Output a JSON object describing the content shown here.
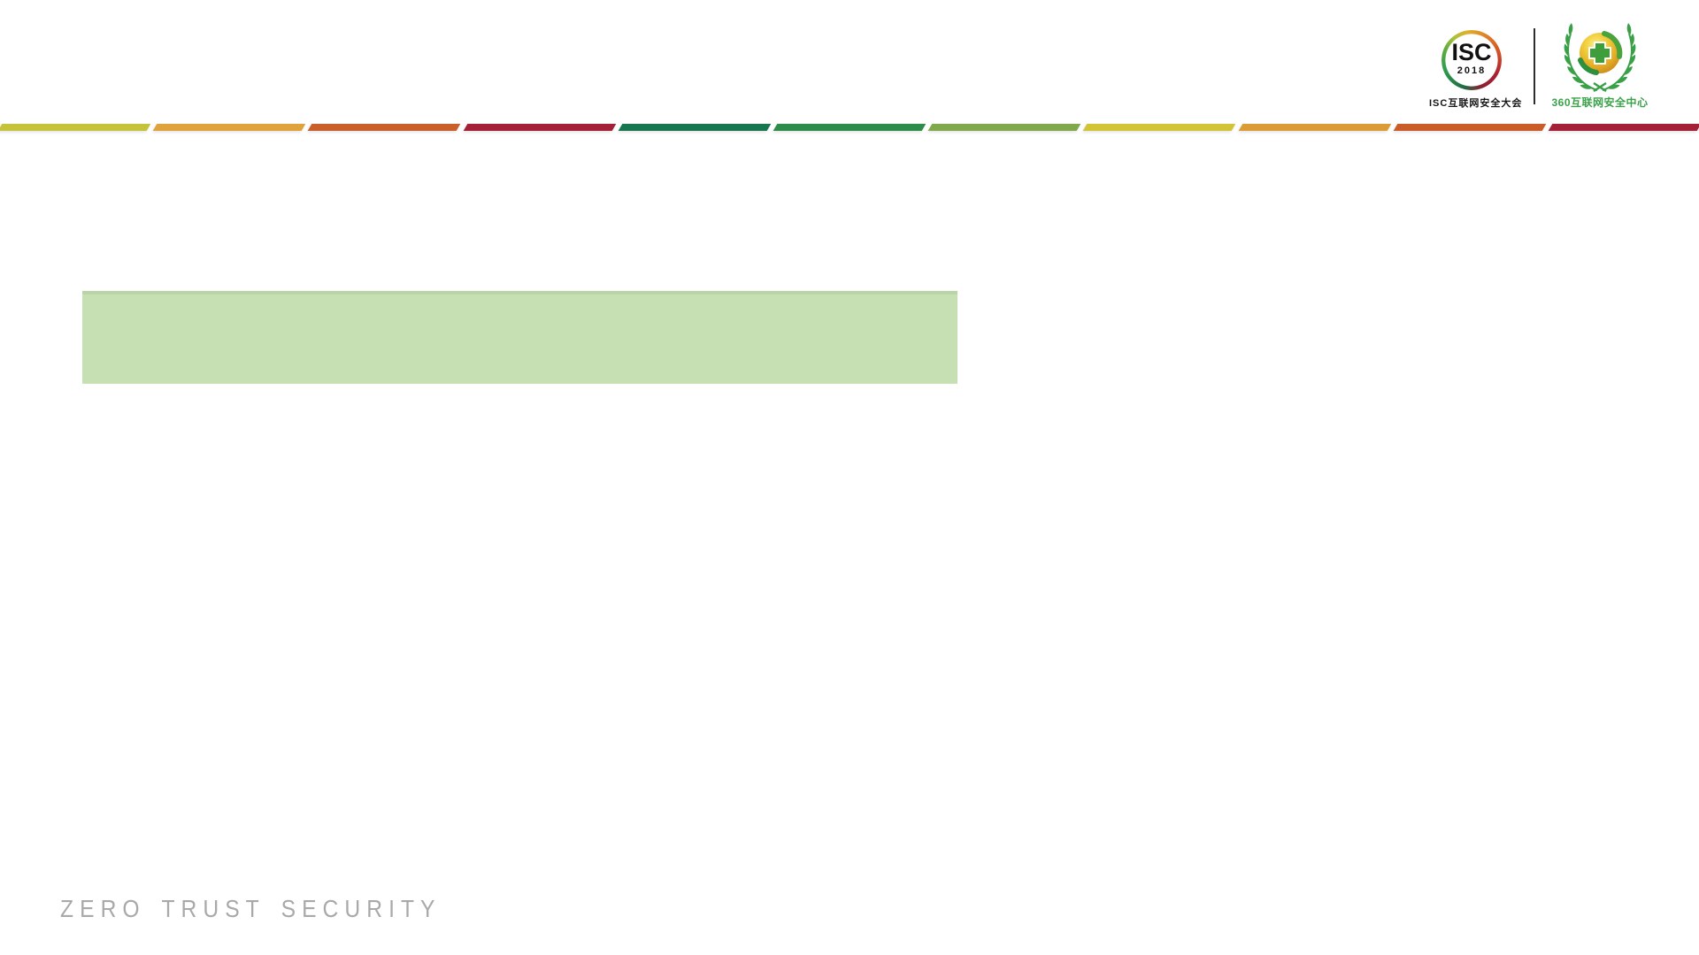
{
  "header": {
    "isc_logo": {
      "acronym": "ISC",
      "year": "2018",
      "caption": "ISC互联网安全大会"
    },
    "logo_360": {
      "caption": "360互联网安全中心",
      "brand_color": "#3aa349"
    },
    "stripe_colors": [
      "#c5c339",
      "#e0a33c",
      "#cb5f2b",
      "#a32036",
      "#17764f",
      "#2e8c4a",
      "#80a94b",
      "#d2c437",
      "#dc9b34",
      "#cb5c29",
      "#a32036"
    ]
  },
  "content": {
    "highlight_block_color": "#c6dfb3"
  },
  "footer": {
    "label": "ZERO TRUST SECURITY",
    "color": "#a9a9a9"
  }
}
